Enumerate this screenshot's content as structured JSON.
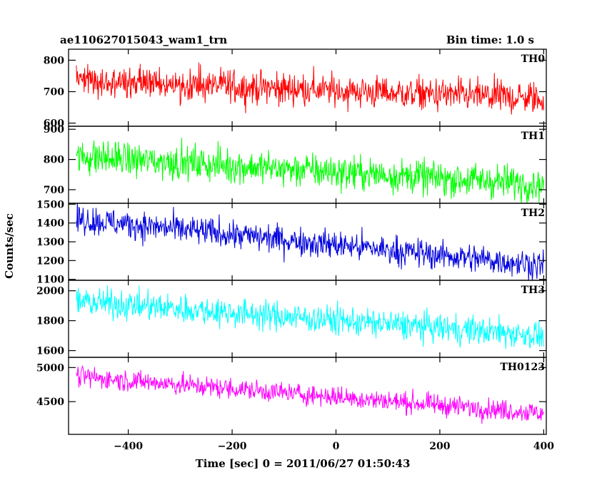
{
  "chart_data": {
    "type": "line",
    "title": "ae110627015043_wam1_trn",
    "subtitle": "Bin time: 1.0 s",
    "xlabel": "Time [sec] 0 = 2011/06/27 01:50:43",
    "ylabel": "Counts/sec",
    "xlim": [
      -515,
      405
    ],
    "x_ticks": [
      -400,
      -200,
      0,
      200,
      400
    ],
    "x_tick_labels": [
      "−400",
      "−200",
      "0",
      "200",
      "400"
    ],
    "x_data_range": [
      -500,
      400
    ],
    "bin_time": 1.0,
    "grid": false,
    "legend": "none",
    "panels": [
      {
        "name": "TH0",
        "color": "#ff0000",
        "ylim": [
          590,
          835
        ],
        "y_ticks": [
          600,
          700,
          800
        ],
        "y_tick_labels": [
          "600",
          "700",
          "800"
        ],
        "trend_start": 735,
        "trend_end": 678,
        "noise": 26
      },
      {
        "name": "TH1",
        "color": "#00ff00",
        "ylim": [
          655,
          910
        ],
        "y_ticks": [
          700,
          800,
          900
        ],
        "y_tick_labels": [
          "700",
          "800",
          "900"
        ],
        "trend_start": 810,
        "trend_end": 718,
        "noise": 28
      },
      {
        "name": "TH2",
        "color": "#0000dd",
        "ylim": [
          1095,
          1505
        ],
        "y_ticks": [
          1100,
          1200,
          1300,
          1400,
          1500
        ],
        "y_tick_labels": [
          "1100",
          "1200",
          "1300",
          "1400",
          "1500"
        ],
        "trend_start": 1420,
        "trend_end": 1175,
        "noise": 38
      },
      {
        "name": "TH3",
        "color": "#00ffff",
        "ylim": [
          1555,
          2070
        ],
        "y_ticks": [
          1600,
          1800,
          2000
        ],
        "y_tick_labels": [
          "1600",
          "1800",
          "2000"
        ],
        "trend_start": 1930,
        "trend_end": 1700,
        "noise": 48
      },
      {
        "name": "TH0123",
        "color": "#ff00ff",
        "ylim": [
          4020,
          5150
        ],
        "y_ticks": [
          4500,
          5000
        ],
        "y_tick_labels": [
          "4500",
          "5000"
        ],
        "trend_start": 4870,
        "trend_end": 4330,
        "noise": 75
      }
    ]
  }
}
